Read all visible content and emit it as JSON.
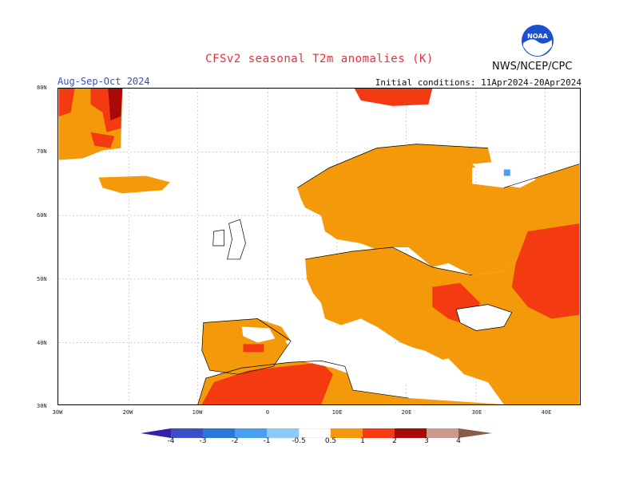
{
  "header": {
    "title": "CFSv2  seasonal  T2m  anomalies  (K)",
    "agency": "NWS/NCEP/CPC",
    "logo_text": "NOAA",
    "season": "Aug-Sep-Oct 2024",
    "initial_conditions": "Initial conditions: 11Apr2024-20Apr2024"
  },
  "axes": {
    "lat_labels": [
      "80N",
      "70N",
      "60N",
      "50N",
      "40N",
      "30N"
    ],
    "lon_labels": [
      "30W",
      "20W",
      "10W",
      "0",
      "10E",
      "20E",
      "30E",
      "40E"
    ],
    "grid": "dotted"
  },
  "colorbar": {
    "ticks": [
      "-4",
      "-3",
      "-2",
      "-1",
      "-0.5",
      "0.5",
      "1",
      "2",
      "3",
      "4"
    ],
    "colors": [
      "#3a1ea8",
      "#3a4fc8",
      "#2a78d8",
      "#4aa0f0",
      "#8ccaf8",
      "#ffffff",
      "#f49a0a",
      "#f33a10",
      "#a80a0a",
      "#c89a8a",
      "#8a5a4a"
    ]
  }
}
